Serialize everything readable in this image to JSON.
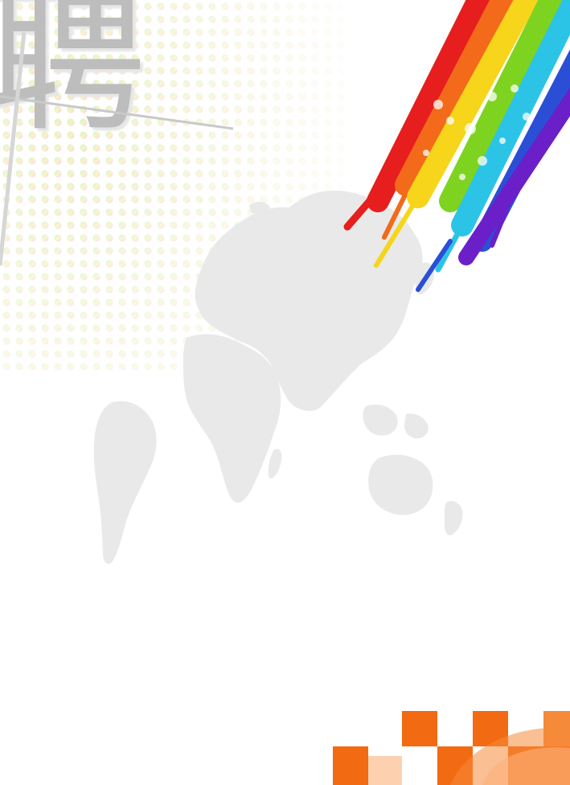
{
  "poster": {
    "headline_char": "聘"
  },
  "colors": {
    "background": "#ffffff",
    "map": "#e9e9e9",
    "headline": "#bdbdbd",
    "rainbow": [
      "#e61e1e",
      "#f26a1a",
      "#f6d51a",
      "#7ed321",
      "#2bc4e6",
      "#2a4fd6",
      "#6a1fc9"
    ],
    "tiles": [
      "#f26a12",
      "#f58a3a",
      "#fbb07a"
    ]
  },
  "icons": {
    "map": "world-map-icon",
    "rainbow": "rainbow-stripes-icon",
    "halftone": "halftone-dots-icon",
    "tiles": "checker-tiles-icon"
  }
}
